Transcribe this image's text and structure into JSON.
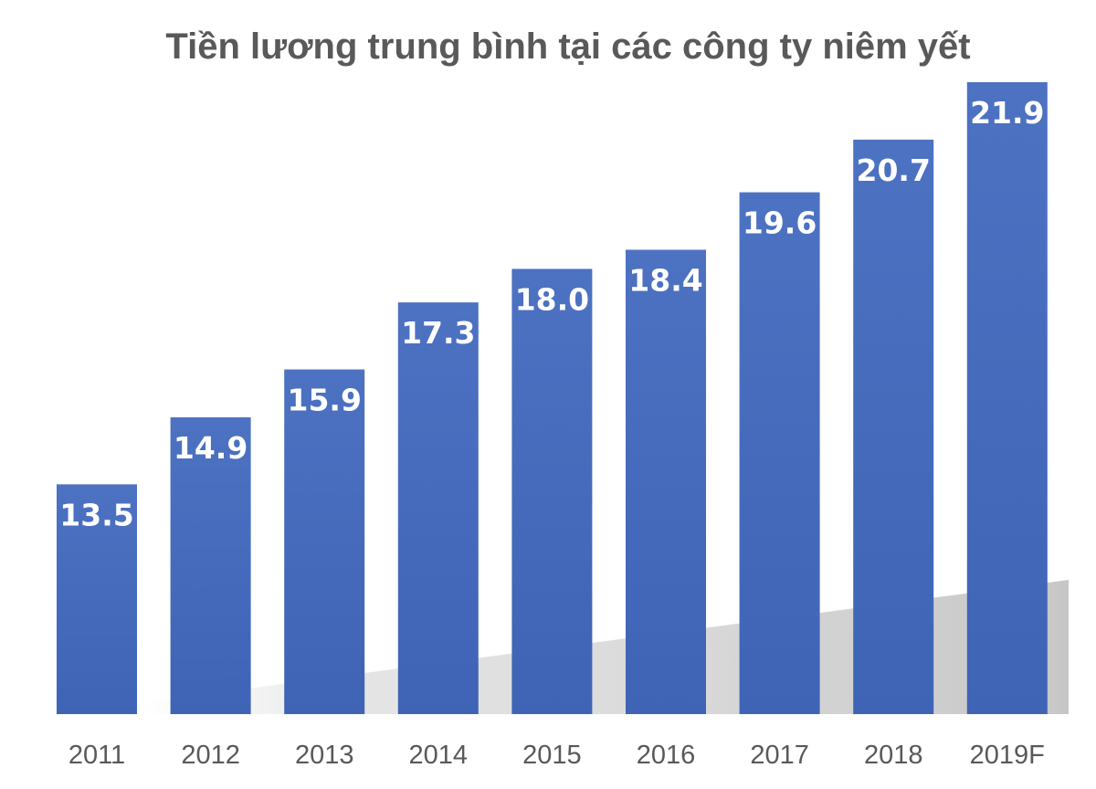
{
  "chart_data": {
    "type": "bar",
    "title": "Tiền lương trung bình tại các công ty niêm yết",
    "categories": [
      "2011",
      "2012",
      "2013",
      "2014",
      "2015",
      "2016",
      "2017",
      "2018",
      "2019F"
    ],
    "values": [
      13.5,
      14.9,
      15.9,
      17.3,
      18.0,
      18.4,
      19.6,
      20.7,
      21.9
    ],
    "data_labels": [
      "13.5",
      "14.9",
      "15.9",
      "17.3",
      "18.0",
      "18.4",
      "19.6",
      "20.7",
      "21.9"
    ],
    "xlabel": "",
    "ylabel": "",
    "ylim": [
      8.7,
      21.9
    ],
    "grid": false,
    "legend": "none",
    "axis_visible": false,
    "bar_color": "#3F63B5",
    "bar_color_light": "#4D72C2",
    "label_color": "#FFFFFF",
    "text_color": "#595959"
  }
}
